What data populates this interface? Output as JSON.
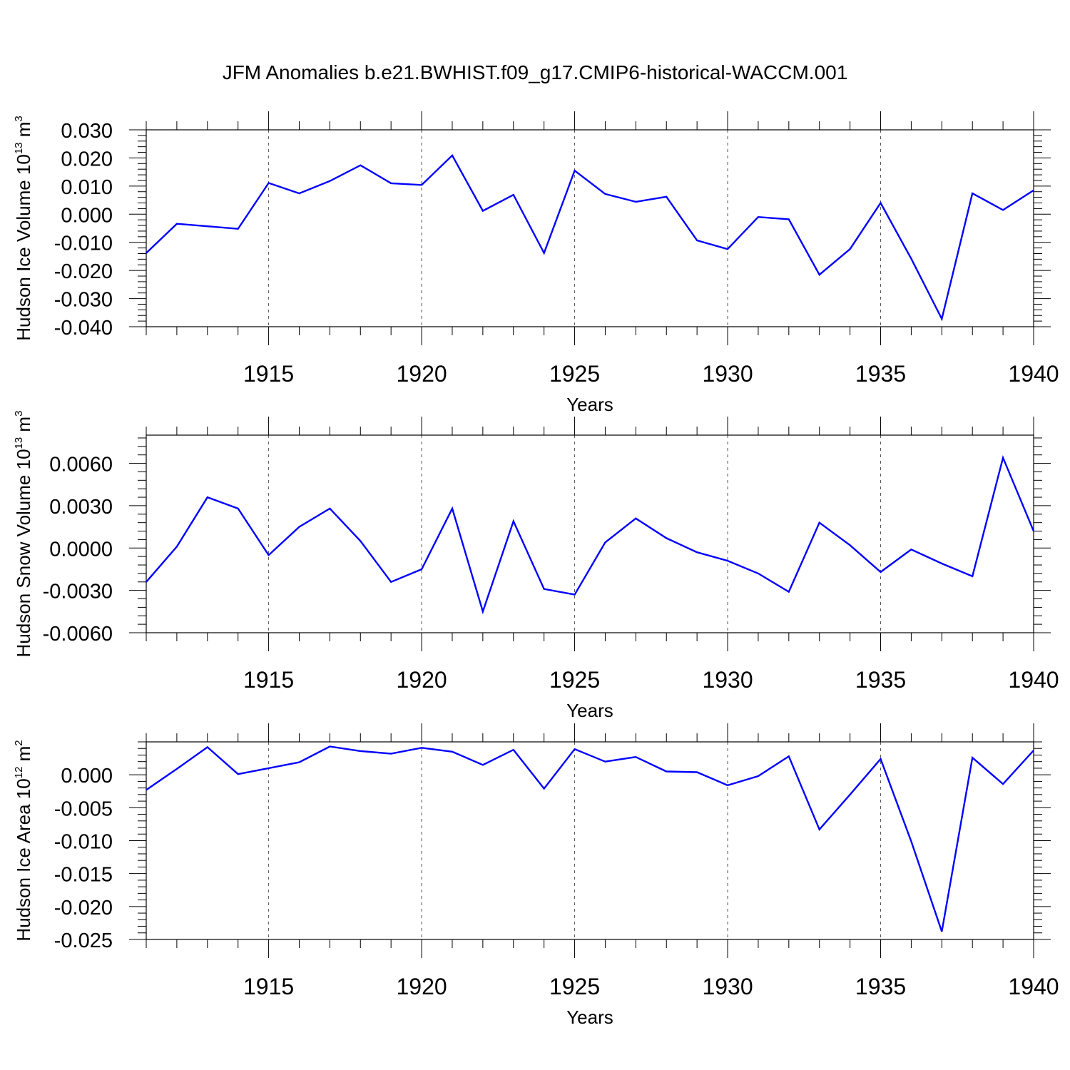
{
  "title": "JFM Anomalies b.e21.BWHIST.f09_g17.CMIP6-historical-WACCM.001",
  "colors": {
    "line": "#0000ff",
    "axis": "#000000",
    "grid": "#555555"
  },
  "chart_data": [
    {
      "type": "line",
      "ylabel_main": "Hudson Ice Volume 10",
      "ylabel_exp": "13",
      "ylabel_unit": " m",
      "ylabel_unit_exp": "3",
      "xlabel": "Years",
      "xlim": [
        1911,
        1940
      ],
      "ylim": [
        -0.04,
        0.03
      ],
      "yticks": [
        0.03,
        0.02,
        0.01,
        0.0,
        -0.01,
        -0.02,
        -0.03,
        -0.04
      ],
      "ytick_labels": [
        "0.030",
        "0.020",
        "0.010",
        "0.000",
        "-0.010",
        "-0.020",
        "-0.030",
        "-0.040"
      ],
      "xticks": [
        1915,
        1920,
        1925,
        1930,
        1935,
        1940
      ],
      "xtick_labels": [
        "1915",
        "1920",
        "1925",
        "1930",
        "1935",
        "1940"
      ],
      "grid": "vertical dashed at major x ticks",
      "series": [
        {
          "name": "Hudson Ice Volume",
          "x": [
            1911,
            1912,
            1913,
            1914,
            1915,
            1916,
            1917,
            1918,
            1919,
            1920,
            1921,
            1922,
            1923,
            1924,
            1925,
            1926,
            1927,
            1928,
            1929,
            1930,
            1931,
            1932,
            1933,
            1934,
            1935,
            1936,
            1937,
            1938,
            1939,
            1940
          ],
          "values": [
            -0.0138,
            -0.0034,
            -0.0043,
            -0.0052,
            0.0111,
            0.0074,
            0.0118,
            0.0174,
            0.011,
            0.0104,
            0.0209,
            0.0012,
            0.0069,
            -0.0138,
            0.0155,
            0.0072,
            0.0044,
            0.0062,
            -0.0093,
            -0.0124,
            -0.001,
            -0.0018,
            -0.0215,
            -0.0124,
            0.004,
            -0.0158,
            -0.0372,
            0.0074,
            0.0015,
            0.0085
          ]
        }
      ]
    },
    {
      "type": "line",
      "ylabel_main": "Hudson Snow Volume 10",
      "ylabel_exp": "13",
      "ylabel_unit": " m",
      "ylabel_unit_exp": "3",
      "xlabel": "Years",
      "xlim": [
        1911,
        1940
      ],
      "ylim": [
        -0.006,
        0.008
      ],
      "yticks": [
        0.006,
        0.003,
        0.0,
        -0.003,
        -0.006
      ],
      "ytick_labels": [
        "0.0060",
        "0.0030",
        "0.0000",
        "-0.0030",
        "-0.0060"
      ],
      "xticks": [
        1915,
        1920,
        1925,
        1930,
        1935,
        1940
      ],
      "xtick_labels": [
        "1915",
        "1920",
        "1925",
        "1930",
        "1935",
        "1940"
      ],
      "grid": "vertical dashed at major x ticks",
      "series": [
        {
          "name": "Hudson Snow Volume",
          "x": [
            1911,
            1912,
            1913,
            1914,
            1915,
            1916,
            1917,
            1918,
            1919,
            1920,
            1921,
            1922,
            1923,
            1924,
            1925,
            1926,
            1927,
            1928,
            1929,
            1930,
            1931,
            1932,
            1933,
            1934,
            1935,
            1936,
            1937,
            1938,
            1939,
            1940
          ],
          "values": [
            -0.0024,
            0.0001,
            0.0036,
            0.0028,
            -0.0005,
            0.0015,
            0.0028,
            0.0005,
            -0.0024,
            -0.0015,
            0.0028,
            -0.0045,
            0.0019,
            -0.0029,
            -0.0033,
            0.0004,
            0.0021,
            0.0007,
            -0.0003,
            -0.0009,
            -0.0018,
            -0.0031,
            0.0018,
            0.0002,
            -0.0017,
            -0.0001,
            -0.0011,
            -0.002,
            0.0064,
            0.0012
          ]
        }
      ]
    },
    {
      "type": "line",
      "ylabel_main": "Hudson Ice Area 10",
      "ylabel_exp": "12",
      "ylabel_unit": " m",
      "ylabel_unit_exp": "2",
      "xlabel": "Years",
      "xlim": [
        1911,
        1940
      ],
      "ylim": [
        -0.025,
        0.005
      ],
      "yticks": [
        0.0,
        -0.005,
        -0.01,
        -0.015,
        -0.02,
        -0.025
      ],
      "ytick_labels": [
        "0.000",
        "-0.005",
        "-0.010",
        "-0.015",
        "-0.020",
        "-0.025"
      ],
      "xticks": [
        1915,
        1920,
        1925,
        1930,
        1935,
        1940
      ],
      "xtick_labels": [
        "1915",
        "1920",
        "1925",
        "1930",
        "1935",
        "1940"
      ],
      "grid": "vertical dashed at major x ticks",
      "series": [
        {
          "name": "Hudson Ice Area",
          "x": [
            1911,
            1912,
            1913,
            1914,
            1915,
            1916,
            1917,
            1918,
            1919,
            1920,
            1921,
            1922,
            1923,
            1924,
            1925,
            1926,
            1927,
            1928,
            1929,
            1930,
            1931,
            1932,
            1933,
            1934,
            1935,
            1936,
            1937,
            1938,
            1939,
            1940
          ],
          "values": [
            -0.0023,
            0.0009,
            0.0042,
            0.0001,
            0.001,
            0.0019,
            0.0043,
            0.0036,
            0.0032,
            0.0041,
            0.0035,
            0.0015,
            0.0038,
            -0.0021,
            0.0039,
            0.002,
            0.0027,
            0.0005,
            0.0004,
            -0.0016,
            -0.0002,
            0.0028,
            -0.0083,
            -0.003,
            0.0024,
            -0.0101,
            -0.0238,
            0.0026,
            -0.0014,
            0.0037
          ]
        }
      ]
    }
  ]
}
